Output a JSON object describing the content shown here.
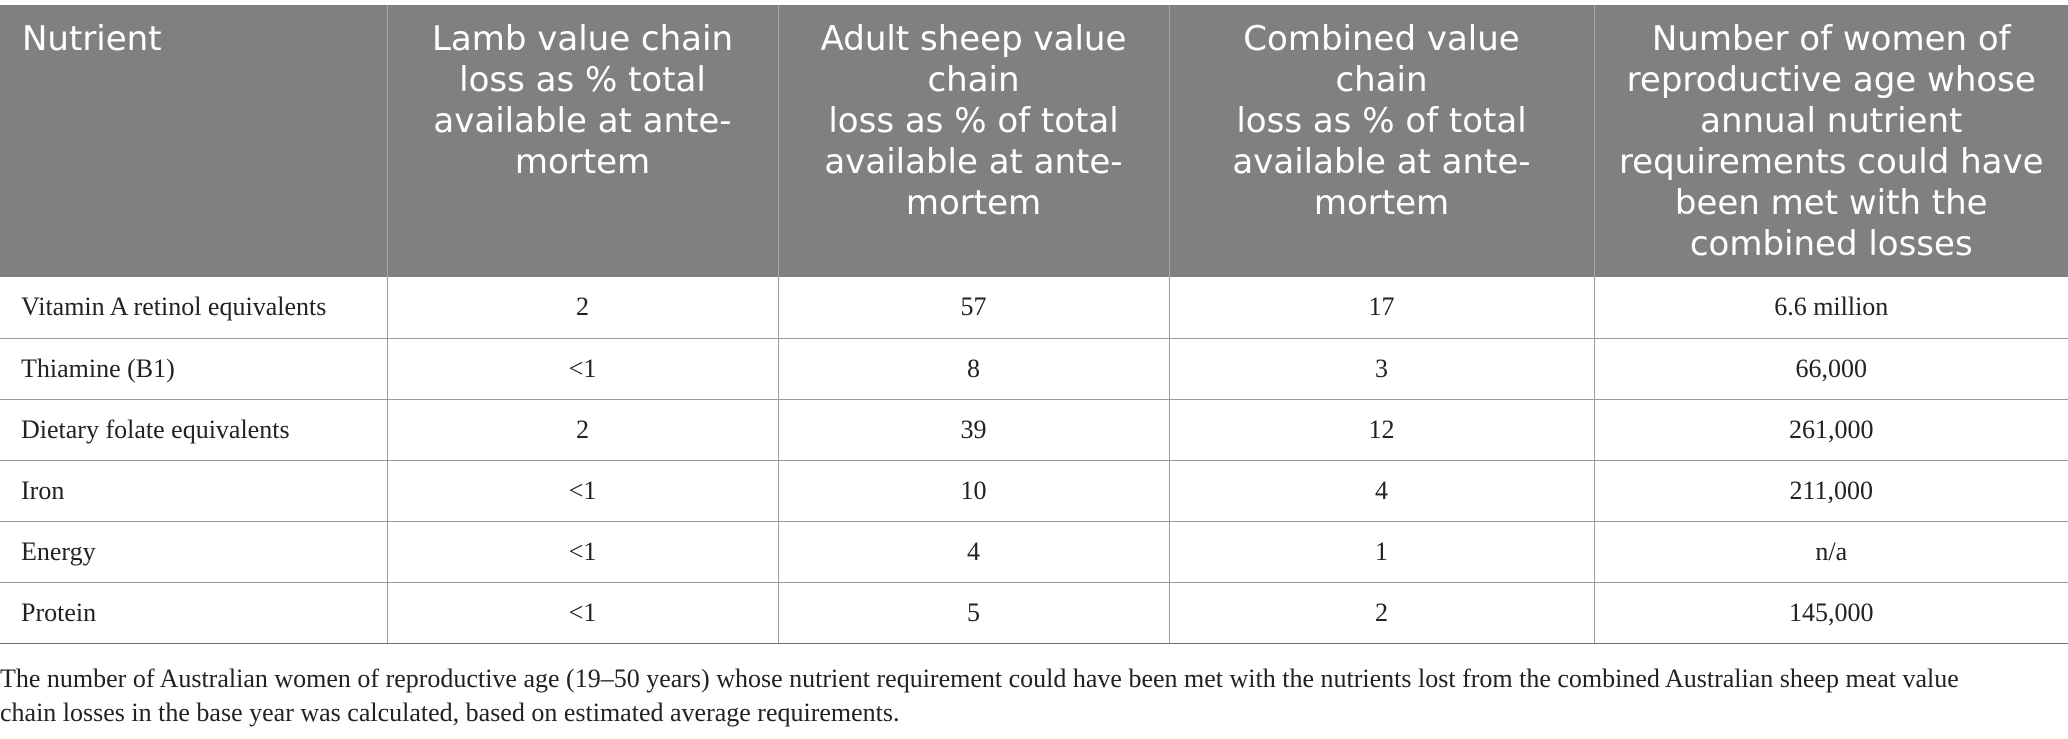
{
  "table": {
    "headers": [
      [
        "Nutrient"
      ],
      [
        "Lamb value chain",
        "loss as % total",
        "available at ante-",
        "mortem"
      ],
      [
        "Adult sheep value",
        "chain",
        "loss as % of total",
        "available at ante-",
        "mortem"
      ],
      [
        "Combined value",
        "chain",
        "loss as % of total",
        "available at ante-",
        "mortem"
      ],
      [
        "Number of women of",
        "reproductive age whose",
        "annual nutrient",
        "requirements could have",
        "been met with the",
        "combined losses"
      ]
    ],
    "rows": [
      [
        "Vitamin A retinol equivalents",
        "2",
        "57",
        "17",
        "6.6 million"
      ],
      [
        "Thiamine (B1)",
        "<1",
        "8",
        "3",
        "66,000"
      ],
      [
        "Dietary folate equivalents",
        "2",
        "39",
        "12",
        "261,000"
      ],
      [
        "Iron",
        "<1",
        "10",
        "4",
        "211,000"
      ],
      [
        "Energy",
        "<1",
        "4",
        "1",
        "n/a"
      ],
      [
        "Protein",
        "<1",
        "5",
        "2",
        "145,000"
      ]
    ]
  },
  "footnote": {
    "lines": [
      "The number of Australian women of reproductive age (19–50 years) whose nutrient requirement could have been met with the nutrients lost from the combined Australian sheep meat value",
      "chain losses in the base year was calculated, based on estimated average requirements."
    ]
  }
}
